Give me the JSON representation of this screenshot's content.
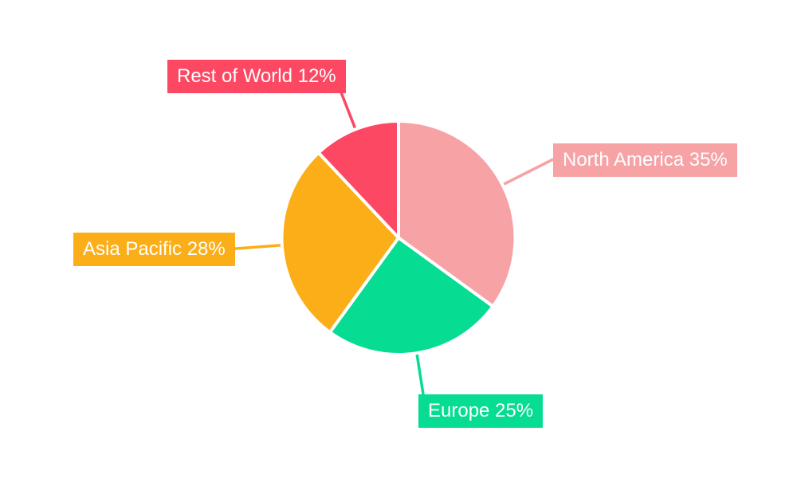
{
  "chart_data": {
    "type": "pie",
    "title": "",
    "legend": "none",
    "background_color": "#FFFFFF",
    "label_style": "callout-badges",
    "label_text_color": "#FFFFFF",
    "slice_separator_color": "#FFFFFF",
    "start_angle_deg": 0,
    "direction": "clockwise",
    "total": 100,
    "segments": [
      {
        "label": "North America",
        "value": 35,
        "color": "#F7A2A5",
        "display_label": "North America 35%"
      },
      {
        "label": "Europe",
        "value": 25,
        "color": "#07DC93",
        "display_label": "Europe 25%"
      },
      {
        "label": "Asia Pacific",
        "value": 28,
        "color": "#FBAE17",
        "display_label": "Asia Pacific 28%"
      },
      {
        "label": "Rest of World",
        "value": 12,
        "color": "#FC4862",
        "display_label": "Rest of World 12%"
      }
    ]
  }
}
